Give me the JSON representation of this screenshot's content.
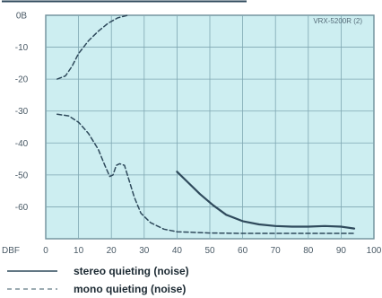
{
  "chart_data": {
    "type": "line",
    "model_label": "VRX-5200R (2)",
    "x_axis_label": "DBF",
    "y_axis_label": "DB",
    "xlim": [
      0,
      100
    ],
    "ylim": [
      -70,
      0
    ],
    "x_ticks": [
      "0",
      "10",
      "20",
      "30",
      "40",
      "50",
      "60",
      "70",
      "80",
      "90",
      "100"
    ],
    "y_ticks": [
      "0B",
      "-10",
      "-20",
      "-30",
      "-40",
      "-50",
      "-60"
    ],
    "grid": true,
    "legend_position": "bottom",
    "series": [
      {
        "name": "stereo quieting (noise)",
        "style": "solid",
        "color": "#2f4a5c",
        "points": [
          [
            40,
            -49
          ],
          [
            43,
            -52
          ],
          [
            47,
            -56
          ],
          [
            51,
            -59.5
          ],
          [
            55,
            -62.5
          ],
          [
            60,
            -64.5
          ],
          [
            65,
            -65.5
          ],
          [
            70,
            -66
          ],
          [
            75,
            -66.2
          ],
          [
            80,
            -66.2
          ],
          [
            85,
            -66
          ],
          [
            90,
            -66.2
          ],
          [
            94,
            -66.8
          ]
        ]
      },
      {
        "name": "mono quieting (noise)",
        "style": "dashed",
        "color": "#2f4a5c",
        "points": [
          [
            3.5,
            -31
          ],
          [
            7,
            -31.5
          ],
          [
            10,
            -33.5
          ],
          [
            13,
            -37
          ],
          [
            16,
            -42
          ],
          [
            18,
            -47
          ],
          [
            19.5,
            -50.5
          ],
          [
            20.5,
            -50
          ],
          [
            21.5,
            -47
          ],
          [
            22.5,
            -46.5
          ],
          [
            24,
            -47
          ],
          [
            25.5,
            -52
          ],
          [
            27,
            -57
          ],
          [
            29,
            -62
          ],
          [
            32,
            -65
          ],
          [
            36,
            -67
          ],
          [
            40,
            -67.8
          ],
          [
            50,
            -68.2
          ],
          [
            60,
            -68.3
          ],
          [
            75,
            -68.3
          ],
          [
            94,
            -68.3
          ]
        ]
      },
      {
        "name": "",
        "style": "dashed",
        "color": "#2f4a5c",
        "points": [
          [
            3.5,
            -20
          ],
          [
            6,
            -19
          ],
          [
            8,
            -16
          ],
          [
            10,
            -12
          ],
          [
            13,
            -8
          ],
          [
            16,
            -5
          ],
          [
            19,
            -2.5
          ],
          [
            22,
            -0.8
          ],
          [
            25,
            0
          ]
        ]
      }
    ]
  }
}
